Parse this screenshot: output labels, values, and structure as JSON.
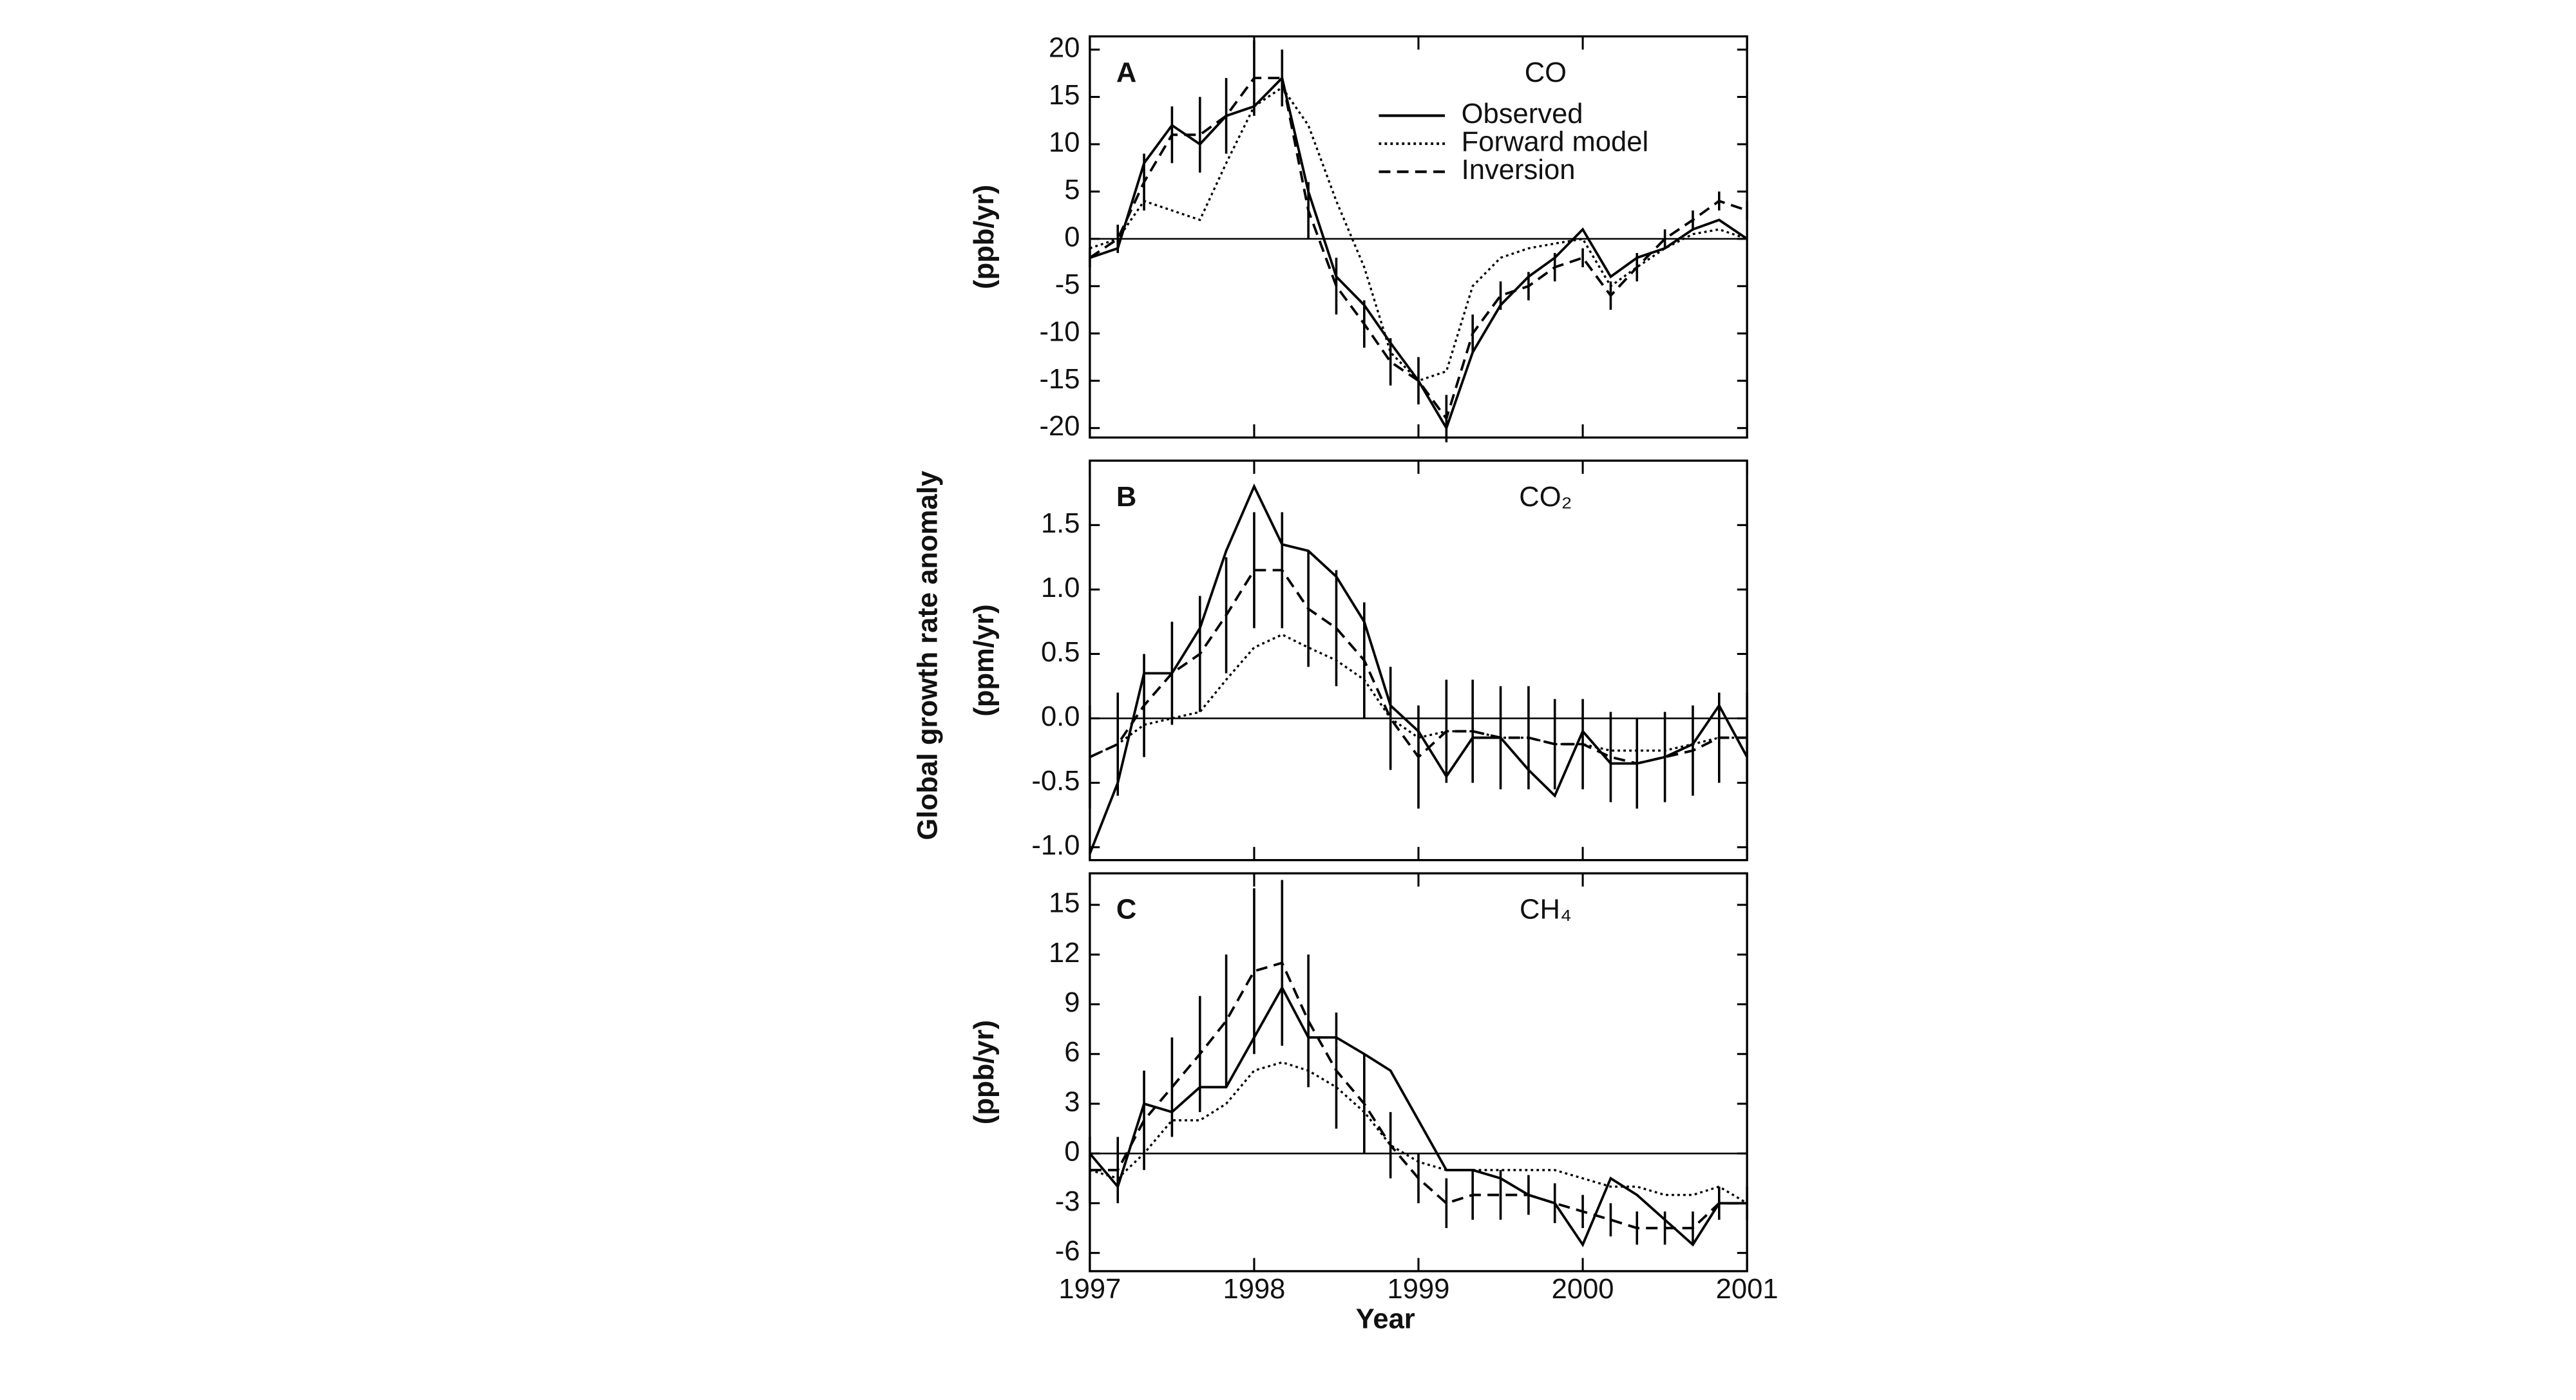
{
  "y_label": "Global growth rate anomaly",
  "chart_data": [
    {
      "type": "line",
      "panel": "A",
      "title": "CO",
      "ylabel": "(ppb/yr)",
      "legend": "upper right",
      "xlim": [
        1997,
        2001
      ],
      "xticks": [
        1997,
        1998,
        1999,
        2000,
        2001
      ],
      "ylim": [
        -21,
        21.4
      ],
      "yticks": [
        -20,
        -15,
        -10,
        -5,
        0,
        5,
        10,
        15,
        20
      ],
      "x": [
        1997.0,
        1997.17,
        1997.33,
        1997.5,
        1997.67,
        1997.83,
        1998.0,
        1998.17,
        1998.33,
        1998.5,
        1998.67,
        1998.83,
        1999.0,
        1999.17,
        1999.33,
        1999.5,
        1999.67,
        1999.83,
        2000.0,
        2000.17,
        2000.33,
        2000.5,
        2000.67,
        2000.83,
        2001.0
      ],
      "series": [
        {
          "name": "Observed",
          "style": "solid",
          "color": "#000000",
          "values": [
            -2,
            -1,
            8,
            12,
            10,
            13,
            14,
            17,
            5,
            -4,
            -7,
            -11,
            -15,
            -20,
            -12,
            -7,
            -4,
            -2,
            1,
            -4,
            -2,
            -1,
            1,
            2,
            0
          ]
        },
        {
          "name": "Forward model",
          "style": "dotted",
          "color": "#000000",
          "values": [
            -1,
            0,
            4,
            3,
            2,
            8,
            14,
            16,
            12,
            4,
            -3,
            -12,
            -15,
            -14,
            -5,
            -2,
            -1,
            -0.5,
            0,
            -5,
            -3,
            -1,
            0.5,
            1,
            0
          ]
        },
        {
          "name": "Inversion",
          "style": "dashed",
          "color": "#000000",
          "values": [
            -2,
            0,
            6,
            11,
            11,
            13,
            17,
            17,
            3,
            -5,
            -9,
            -13,
            -15,
            -19,
            -10,
            -6,
            -5,
            -3,
            -2,
            -6,
            -3,
            0,
            2,
            4,
            3
          ],
          "errors": [
            1,
            1.5,
            3,
            3,
            4,
            4,
            4,
            3,
            3,
            3,
            2.5,
            2.5,
            2.5,
            2.5,
            2,
            1.5,
            1.5,
            1.5,
            1,
            1.5,
            1.5,
            1,
            1,
            1,
            1
          ]
        }
      ]
    },
    {
      "type": "line",
      "panel": "B",
      "title": "CO₂",
      "ylabel": "(ppm/yr)",
      "xlim": [
        1997,
        2001
      ],
      "xticks": [
        1997,
        1998,
        1999,
        2000,
        2001
      ],
      "ylim": [
        -1.1,
        2.0
      ],
      "yticks": [
        {
          "value": -1,
          "label": "-1.0"
        },
        -0.5,
        {
          "value": 0,
          "label": "0.0"
        },
        0.5,
        {
          "value": 1,
          "label": "1.0"
        },
        1.5
      ],
      "x": [
        1997.0,
        1997.17,
        1997.33,
        1997.5,
        1997.67,
        1997.83,
        1998.0,
        1998.17,
        1998.33,
        1998.5,
        1998.67,
        1998.83,
        1999.0,
        1999.17,
        1999.33,
        1999.5,
        1999.67,
        1999.83,
        2000.0,
        2000.17,
        2000.33,
        2000.5,
        2000.67,
        2000.83,
        2001.0
      ],
      "series": [
        {
          "style": "solid",
          "color": "#000000",
          "values": [
            -1.05,
            -0.5,
            0.35,
            0.35,
            0.7,
            1.3,
            1.8,
            1.35,
            1.3,
            1.1,
            0.75,
            0.1,
            -0.1,
            -0.45,
            -0.15,
            -0.15,
            -0.4,
            -0.6,
            -0.1,
            -0.35,
            -0.35,
            -0.3,
            -0.2,
            0.1,
            -0.3
          ]
        },
        {
          "style": "dotted",
          "color": "#000000",
          "values": [
            -0.3,
            -0.2,
            -0.05,
            0.0,
            0.05,
            0.3,
            0.55,
            0.65,
            0.55,
            0.45,
            0.3,
            0.0,
            -0.15,
            -0.1,
            -0.1,
            -0.15,
            -0.15,
            -0.2,
            -0.2,
            -0.25,
            -0.25,
            -0.25,
            -0.2,
            -0.15,
            -0.15
          ]
        },
        {
          "style": "dashed",
          "color": "#000000",
          "values": [
            -0.3,
            -0.2,
            0.1,
            0.35,
            0.5,
            0.8,
            1.15,
            1.15,
            0.85,
            0.7,
            0.45,
            0.0,
            -0.3,
            -0.1,
            -0.1,
            -0.15,
            -0.15,
            -0.2,
            -0.2,
            -0.3,
            -0.35,
            -0.3,
            -0.25,
            -0.15,
            -0.15
          ],
          "errors": [
            0.4,
            0.4,
            0.4,
            0.4,
            0.45,
            0.45,
            0.45,
            0.45,
            0.45,
            0.45,
            0.45,
            0.4,
            0.4,
            0.4,
            0.4,
            0.4,
            0.4,
            0.35,
            0.35,
            0.35,
            0.35,
            0.35,
            0.35,
            0.35,
            0.35
          ]
        }
      ]
    },
    {
      "type": "line",
      "panel": "C",
      "title": "CH₄",
      "ylabel": "(ppb/yr)",
      "xlabel": "Year",
      "xlim": [
        1997,
        2001
      ],
      "xticks": [
        1997,
        1998,
        1999,
        2000,
        2001
      ],
      "ylim": [
        -7.1,
        16.9
      ],
      "yticks": [
        -6,
        -3,
        0,
        3,
        6,
        9,
        12,
        15
      ],
      "x": [
        1997.0,
        1997.17,
        1997.33,
        1997.5,
        1997.67,
        1997.83,
        1998.0,
        1998.17,
        1998.33,
        1998.5,
        1998.67,
        1998.83,
        1999.0,
        1999.17,
        1999.33,
        1999.5,
        1999.67,
        1999.83,
        2000.0,
        2000.17,
        2000.33,
        2000.5,
        2000.67,
        2000.83,
        2001.0
      ],
      "series": [
        {
          "style": "solid",
          "color": "#000000",
          "values": [
            0,
            -2,
            3,
            2.5,
            4,
            4,
            7,
            10,
            7,
            7,
            6,
            5,
            2,
            -1,
            -1,
            -1.5,
            -2.5,
            -3,
            -5.5,
            -1.5,
            -2.5,
            -4,
            -5.5,
            -3,
            -3
          ]
        },
        {
          "style": "dotted",
          "color": "#000000",
          "values": [
            -1,
            -1.5,
            0,
            2,
            2,
            3,
            5,
            5.5,
            5,
            4,
            2.5,
            0.5,
            -0.5,
            -1,
            -1,
            -1,
            -1,
            -1,
            -1.5,
            -2,
            -2,
            -2.5,
            -2.5,
            -2,
            -3
          ]
        },
        {
          "style": "dashed",
          "color": "#000000",
          "values": [
            -1,
            -1,
            2,
            4,
            6,
            8,
            11,
            11.5,
            8,
            5,
            3,
            0.5,
            -1.5,
            -3,
            -2.5,
            -2.5,
            -2.5,
            -3,
            -3.5,
            -4,
            -4.5,
            -4.5,
            -4.5,
            -3,
            -3
          ],
          "errors": [
            2,
            2,
            3,
            3,
            3.5,
            4,
            5,
            5,
            4,
            3.5,
            3,
            2,
            1.5,
            1.5,
            1.5,
            1.5,
            1.2,
            1.2,
            1,
            1,
            1,
            1,
            1,
            1,
            1
          ]
        }
      ]
    }
  ]
}
